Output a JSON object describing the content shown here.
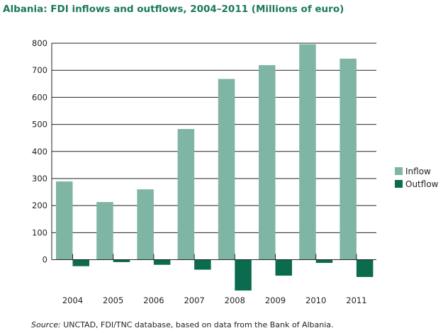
{
  "chart_data": {
    "type": "bar",
    "title": "Albania: FDI inflows and outflows, 2004–2011 (Millions of euro)",
    "categories": [
      "2004",
      "2005",
      "2006",
      "2007",
      "2008",
      "2009",
      "2010",
      "2011"
    ],
    "series": [
      {
        "name": "Inflow",
        "color": "#7fb5a5",
        "values": [
          289,
          213,
          260,
          483,
          668,
          719,
          796,
          743
        ]
      },
      {
        "name": "Outflow",
        "color": "#0b6b4e",
        "values": [
          -24,
          -9,
          -19,
          -37,
          -114,
          -59,
          -12,
          -64
        ]
      }
    ],
    "yticks": [
      0,
      100,
      200,
      300,
      400,
      500,
      600,
      700,
      800
    ],
    "ylim": [
      -120,
      800
    ],
    "grid": true,
    "legend": "right",
    "xlabel": "",
    "ylabel": ""
  },
  "source": {
    "label": "Source:",
    "text": " UNCTAD, FDI/TNC database, based on data from the Bank of Albania."
  }
}
